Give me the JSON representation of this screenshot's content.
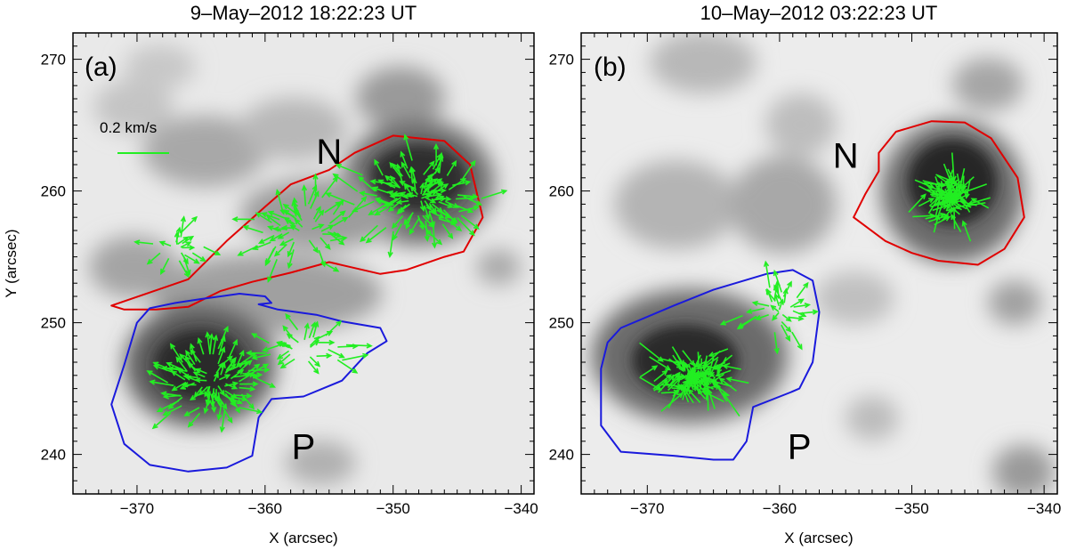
{
  "chart_data": [
    {
      "type": "vector-field",
      "title": "9–May–2012 18:22:23 UT",
      "panel_label": "(a)",
      "xlabel": "X (arcsec)",
      "ylabel": "Y (arcsec)",
      "xlim": [
        -375,
        -339
      ],
      "ylim": [
        237,
        272
      ],
      "xticks": [
        -370,
        -360,
        -350,
        -340
      ],
      "xtick_labels": [
        "−370",
        "−360",
        "−350",
        "−340"
      ],
      "yticks": [
        240,
        250,
        260,
        270
      ],
      "ytick_labels": [
        "240",
        "250",
        "260",
        "270"
      ],
      "scale_label": "0.2 km/s",
      "scale_speed": 0.2,
      "annotations": [
        {
          "text": "N",
          "x": -355,
          "y": 263
        },
        {
          "text": "P",
          "x": -357,
          "y": 240.6
        }
      ],
      "regions": [
        {
          "polarity": "N",
          "color": "#e00000",
          "x": [
            -372,
            -366,
            -363,
            -360,
            -358,
            -355,
            -353,
            -350,
            -346,
            -344,
            -343,
            -344.5,
            -346,
            -349,
            -351,
            -355,
            -358,
            -361,
            -363.5,
            -366,
            -368.5,
            -371,
            -372
          ],
          "y": [
            251.3,
            253.3,
            256.2,
            258.8,
            260.5,
            261.6,
            262.9,
            264.2,
            263.8,
            262,
            258,
            255.4,
            255,
            254,
            253.7,
            254.6,
            253.8,
            253.1,
            252.4,
            251.2,
            251,
            251,
            251.3
          ]
        },
        {
          "polarity": "P",
          "color": "#1a1adc",
          "x": [
            -370,
            -369,
            -367,
            -365,
            -362,
            -360,
            -359.5,
            -360.5,
            -359,
            -356,
            -354,
            -351,
            -350.5,
            -352,
            -354,
            -357,
            -359.5,
            -360.5,
            -361,
            -363,
            -366,
            -369,
            -371,
            -372,
            -371,
            -370
          ],
          "y": [
            250,
            251.1,
            251.5,
            251.8,
            252.2,
            252,
            251.5,
            251.4,
            251,
            250.6,
            250.1,
            249.6,
            248.6,
            247.7,
            245.6,
            244.4,
            244.2,
            242.8,
            239.9,
            239,
            238.7,
            239.2,
            240.8,
            243.8,
            246.8,
            250
          ]
        }
      ],
      "vector_clusters": [
        {
          "x": -348,
          "y": 259.5,
          "sx": 4.5,
          "sy": 3,
          "count": 110,
          "flow": "outflow"
        },
        {
          "x": -357,
          "y": 257,
          "sx": 4,
          "sy": 2.6,
          "count": 55,
          "flow": "outflow"
        },
        {
          "x": -367,
          "y": 255.6,
          "sx": 3,
          "sy": 1.3,
          "count": 18,
          "flow": "outflow"
        },
        {
          "x": -364,
          "y": 245.5,
          "sx": 4,
          "sy": 3,
          "count": 95,
          "flow": "outflow"
        },
        {
          "x": -357,
          "y": 248,
          "sx": 4,
          "sy": 1.8,
          "count": 30,
          "flow": "outflow"
        }
      ]
    },
    {
      "type": "vector-field",
      "title": "10–May–2012 03:22:23 UT",
      "panel_label": "(b)",
      "xlabel": "X (arcsec)",
      "ylabel": "",
      "xlim": [
        -375,
        -339
      ],
      "ylim": [
        237,
        272
      ],
      "xticks": [
        -370,
        -360,
        -350,
        -340
      ],
      "xtick_labels": [
        "−370",
        "−360",
        "−350",
        "−340"
      ],
      "yticks": [
        240,
        250,
        260,
        270
      ],
      "ytick_labels": [
        "240",
        "250",
        "260",
        "270"
      ],
      "annotations": [
        {
          "text": "N",
          "x": -355,
          "y": 262.7
        },
        {
          "text": "P",
          "x": -358.5,
          "y": 240.6
        }
      ],
      "regions": [
        {
          "polarity": "N",
          "color": "#e00000",
          "x": [
            -353.5,
            -352.5,
            -352.5,
            -351.2,
            -348.5,
            -346,
            -344,
            -342,
            -341.5,
            -343,
            -345,
            -348,
            -350,
            -352,
            -354.4,
            -353.5
          ],
          "y": [
            259.8,
            261.5,
            262.9,
            264.5,
            265.3,
            265.2,
            264,
            261,
            258,
            255.6,
            254.4,
            254.7,
            255.3,
            256.2,
            258,
            259.8
          ]
        },
        {
          "polarity": "P",
          "color": "#1a1adc",
          "x": [
            -372,
            -368,
            -365,
            -361,
            -359,
            -357.5,
            -357,
            -357.5,
            -358.5,
            -359.2,
            -362,
            -362.5,
            -363.5,
            -365,
            -368,
            -372,
            -373.5,
            -373.5,
            -373,
            -372
          ],
          "y": [
            249.6,
            251.3,
            252.5,
            253.7,
            254,
            253.2,
            250.8,
            247,
            245,
            244.7,
            243.6,
            241,
            239.6,
            239.6,
            239.9,
            240.2,
            242.2,
            246.5,
            248.5,
            249.6
          ]
        }
      ],
      "vector_clusters": [
        {
          "x": -347,
          "y": 259.5,
          "sx": 3.5,
          "sy": 3.2,
          "count": 90,
          "flow": "inflow"
        },
        {
          "x": -366.5,
          "y": 246,
          "sx": 4.5,
          "sy": 3,
          "count": 100,
          "flow": "inflow"
        },
        {
          "x": -360,
          "y": 250.8,
          "sx": 2.5,
          "sy": 2,
          "count": 30,
          "flow": "outflow"
        }
      ]
    }
  ],
  "colors": {
    "arrows": "#22ee22",
    "n_contour": "#e00000",
    "p_contour": "#1a1adc"
  }
}
